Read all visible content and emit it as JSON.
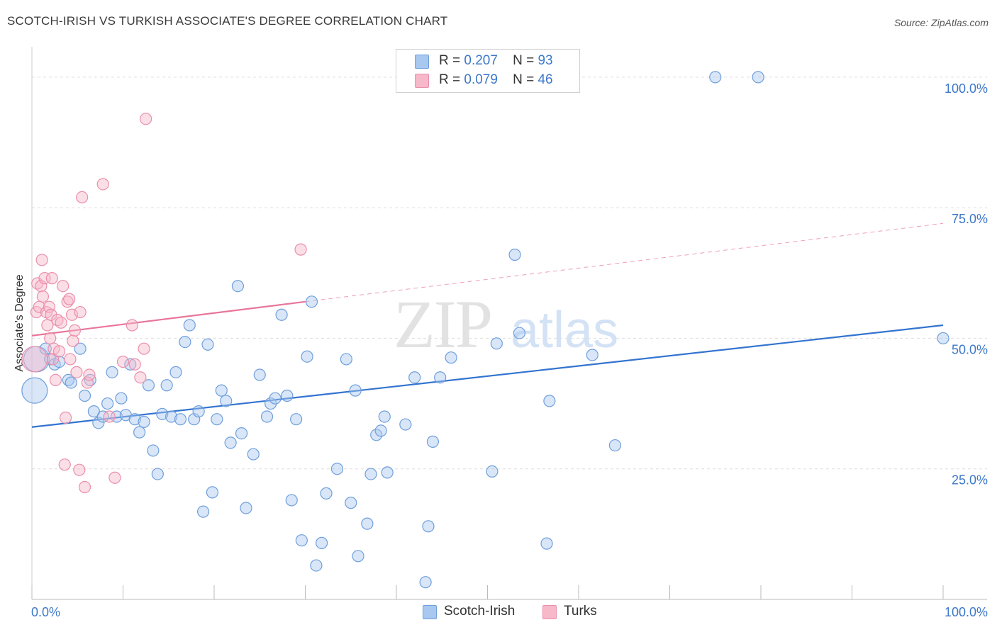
{
  "title": "SCOTCH-IRISH VS TURKISH ASSOCIATE'S DEGREE CORRELATION CHART",
  "source": "Source: ZipAtlas.com",
  "watermark": {
    "zip": "ZIP",
    "atlas": "atlas"
  },
  "legend": {
    "rows": [
      {
        "r_label": "R =",
        "r_value": "0.207",
        "n_label": "N =",
        "n_value": "93"
      },
      {
        "r_label": "R =",
        "r_value": "0.079",
        "n_label": "N =",
        "n_value": "46"
      }
    ]
  },
  "bottom_legend": {
    "series1": "Scotch-Irish",
    "series2": "Turks"
  },
  "colors": {
    "blue_fill": "#a8c8f0",
    "blue_stroke": "#6f9fdc",
    "blue_line": "#3374d0",
    "pink_fill": "#f7b8ca",
    "pink_stroke": "#ea8fab",
    "pink_line": "#e8769a",
    "axis_label": "#3d78c9",
    "grid": "#dddddd"
  },
  "chart_data": {
    "type": "scatter",
    "title": "SCOTCH-IRISH VS TURKISH ASSOCIATE'S DEGREE CORRELATION CHART",
    "xlabel": "",
    "ylabel": "Associate's Degree",
    "xlim": [
      0,
      100
    ],
    "ylim": [
      0,
      105
    ],
    "x_tick_labels": [
      "0.0%",
      "100.0%"
    ],
    "y_ticks": [
      {
        "value": 25,
        "label": "25.0%"
      },
      {
        "value": 50,
        "label": "50.0%"
      },
      {
        "value": 75,
        "label": "75.0%"
      },
      {
        "value": 100,
        "label": "100.0%"
      }
    ],
    "series": [
      {
        "name": "Scotch-Irish",
        "r": 0.207,
        "n": 93,
        "trend": {
          "x0": 0,
          "y0": 33.0,
          "x1": 100,
          "y1": 52.5
        },
        "points": [
          {
            "x": 0.3,
            "y": 40,
            "big": true
          },
          {
            "x": 0.5,
            "y": 46,
            "big": true
          },
          {
            "x": 1.5,
            "y": 48
          },
          {
            "x": 2,
            "y": 46
          },
          {
            "x": 2.5,
            "y": 45
          },
          {
            "x": 3,
            "y": 45.5
          },
          {
            "x": 4,
            "y": 42
          },
          {
            "x": 4.3,
            "y": 41.5
          },
          {
            "x": 5.3,
            "y": 48
          },
          {
            "x": 5.8,
            "y": 39
          },
          {
            "x": 6.4,
            "y": 42
          },
          {
            "x": 6.8,
            "y": 36
          },
          {
            "x": 7.3,
            "y": 33.8
          },
          {
            "x": 7.8,
            "y": 35
          },
          {
            "x": 8.3,
            "y": 37.5
          },
          {
            "x": 8.8,
            "y": 43.5
          },
          {
            "x": 9.3,
            "y": 35
          },
          {
            "x": 9.8,
            "y": 38.5
          },
          {
            "x": 10.3,
            "y": 35.3
          },
          {
            "x": 10.8,
            "y": 45
          },
          {
            "x": 11.3,
            "y": 34.5
          },
          {
            "x": 11.8,
            "y": 32
          },
          {
            "x": 12.3,
            "y": 34
          },
          {
            "x": 12.8,
            "y": 41
          },
          {
            "x": 13.3,
            "y": 28.5
          },
          {
            "x": 13.8,
            "y": 24
          },
          {
            "x": 14.3,
            "y": 35.5
          },
          {
            "x": 14.8,
            "y": 41
          },
          {
            "x": 15.3,
            "y": 35
          },
          {
            "x": 15.8,
            "y": 43.5
          },
          {
            "x": 16.3,
            "y": 34.5
          },
          {
            "x": 16.8,
            "y": 49.3
          },
          {
            "x": 17.3,
            "y": 52.5
          },
          {
            "x": 17.8,
            "y": 34.5
          },
          {
            "x": 18.3,
            "y": 36
          },
          {
            "x": 18.8,
            "y": 16.8
          },
          {
            "x": 19.3,
            "y": 48.8
          },
          {
            "x": 19.8,
            "y": 20.5
          },
          {
            "x": 20.3,
            "y": 34.5
          },
          {
            "x": 20.8,
            "y": 40
          },
          {
            "x": 21.3,
            "y": 38
          },
          {
            "x": 21.8,
            "y": 30
          },
          {
            "x": 22.6,
            "y": 60
          },
          {
            "x": 23,
            "y": 31.8
          },
          {
            "x": 23.5,
            "y": 17.5
          },
          {
            "x": 24.3,
            "y": 27.8
          },
          {
            "x": 25,
            "y": 43
          },
          {
            "x": 25.8,
            "y": 35
          },
          {
            "x": 26.2,
            "y": 37.5
          },
          {
            "x": 26.7,
            "y": 38.5
          },
          {
            "x": 27.4,
            "y": 54.5
          },
          {
            "x": 28,
            "y": 39
          },
          {
            "x": 28.5,
            "y": 19
          },
          {
            "x": 29,
            "y": 34.5
          },
          {
            "x": 29.6,
            "y": 11.3
          },
          {
            "x": 30.2,
            "y": 46.5
          },
          {
            "x": 30.7,
            "y": 57
          },
          {
            "x": 31.2,
            "y": 6.5
          },
          {
            "x": 31.8,
            "y": 10.8
          },
          {
            "x": 32.3,
            "y": 20.3
          },
          {
            "x": 33.5,
            "y": 25
          },
          {
            "x": 34.5,
            "y": 46
          },
          {
            "x": 35,
            "y": 18.5
          },
          {
            "x": 35.5,
            "y": 40
          },
          {
            "x": 35.8,
            "y": 8.3
          },
          {
            "x": 36.8,
            "y": 14.5
          },
          {
            "x": 37.2,
            "y": 24
          },
          {
            "x": 37.8,
            "y": 31.5
          },
          {
            "x": 38.3,
            "y": 32.3
          },
          {
            "x": 38.7,
            "y": 35
          },
          {
            "x": 39,
            "y": 24.3
          },
          {
            "x": 41,
            "y": 33.5
          },
          {
            "x": 42,
            "y": 42.5
          },
          {
            "x": 43.2,
            "y": 3.3
          },
          {
            "x": 43.5,
            "y": 14
          },
          {
            "x": 44,
            "y": 30.2
          },
          {
            "x": 44.8,
            "y": 42.5
          },
          {
            "x": 46,
            "y": 46.3
          },
          {
            "x": 50.5,
            "y": 24.5
          },
          {
            "x": 51,
            "y": 49
          },
          {
            "x": 53,
            "y": 66
          },
          {
            "x": 53.5,
            "y": 51
          },
          {
            "x": 56.5,
            "y": 10.7
          },
          {
            "x": 56.8,
            "y": 38
          },
          {
            "x": 61.5,
            "y": 46.8
          },
          {
            "x": 64,
            "y": 29.5
          },
          {
            "x": 75,
            "y": 100
          },
          {
            "x": 79.7,
            "y": 100
          },
          {
            "x": 100,
            "y": 50
          }
        ]
      },
      {
        "name": "Turks",
        "r": 0.079,
        "n": 46,
        "trend": {
          "x0": 0,
          "y0": 50.5,
          "x1": 30,
          "y1": 57.0
        },
        "trend_dashed": {
          "x0": 30,
          "y0": 57.0,
          "x1": 100,
          "y1": 72.0
        },
        "points": [
          {
            "x": 0.3,
            "y": 46,
            "big": true
          },
          {
            "x": 0.5,
            "y": 55
          },
          {
            "x": 0.6,
            "y": 60.5
          },
          {
            "x": 0.8,
            "y": 56
          },
          {
            "x": 1,
            "y": 60
          },
          {
            "x": 1.1,
            "y": 65
          },
          {
            "x": 1.2,
            "y": 58
          },
          {
            "x": 1.4,
            "y": 61.5
          },
          {
            "x": 1.6,
            "y": 55
          },
          {
            "x": 1.7,
            "y": 52.5
          },
          {
            "x": 1.9,
            "y": 56
          },
          {
            "x": 2,
            "y": 50
          },
          {
            "x": 2.1,
            "y": 54.5
          },
          {
            "x": 2.2,
            "y": 61.5
          },
          {
            "x": 2.3,
            "y": 46
          },
          {
            "x": 2.4,
            "y": 48
          },
          {
            "x": 2.6,
            "y": 42
          },
          {
            "x": 2.8,
            "y": 53.5
          },
          {
            "x": 3,
            "y": 47.5
          },
          {
            "x": 3.2,
            "y": 53
          },
          {
            "x": 3.4,
            "y": 60
          },
          {
            "x": 3.6,
            "y": 25.8
          },
          {
            "x": 3.7,
            "y": 34.8
          },
          {
            "x": 3.9,
            "y": 57
          },
          {
            "x": 4.1,
            "y": 57.5
          },
          {
            "x": 4.2,
            "y": 46
          },
          {
            "x": 4.4,
            "y": 54.5
          },
          {
            "x": 4.5,
            "y": 49.5
          },
          {
            "x": 4.7,
            "y": 51.5
          },
          {
            "x": 4.9,
            "y": 43.5
          },
          {
            "x": 5.2,
            "y": 24.8
          },
          {
            "x": 5.3,
            "y": 55
          },
          {
            "x": 5.5,
            "y": 77
          },
          {
            "x": 5.8,
            "y": 21.5
          },
          {
            "x": 6.1,
            "y": 41.5
          },
          {
            "x": 6.3,
            "y": 43
          },
          {
            "x": 7.8,
            "y": 79.5
          },
          {
            "x": 8.5,
            "y": 35
          },
          {
            "x": 9.1,
            "y": 23.3
          },
          {
            "x": 10,
            "y": 45.5
          },
          {
            "x": 11,
            "y": 52.5
          },
          {
            "x": 11.3,
            "y": 45
          },
          {
            "x": 11.9,
            "y": 42.5
          },
          {
            "x": 12.3,
            "y": 48
          },
          {
            "x": 12.5,
            "y": 92
          },
          {
            "x": 29.5,
            "y": 67
          }
        ]
      }
    ]
  }
}
